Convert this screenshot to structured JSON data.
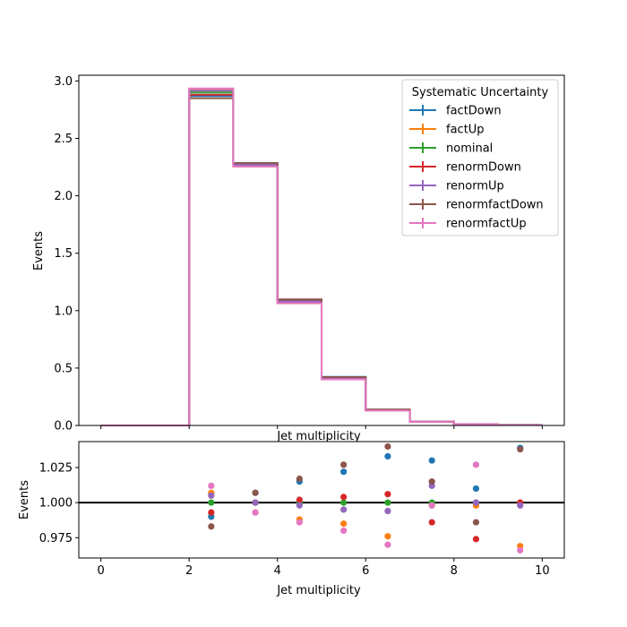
{
  "chart_data": [
    {
      "type": "line",
      "subtype": "step-histogram",
      "xlabel": "Jet multiplicity",
      "ylabel": "Events",
      "xlim": [
        -0.5,
        10.5
      ],
      "ylim": [
        0,
        3.05
      ],
      "xticks": [
        0,
        2,
        4,
        6,
        8,
        10
      ],
      "xtick_labels": [
        "",
        "",
        "",
        "",
        "",
        ""
      ],
      "yticks": [
        0.0,
        0.5,
        1.0,
        1.5,
        2.0,
        2.5,
        3.0
      ],
      "ytick_labels": [
        "0.0",
        "0.5",
        "1.0",
        "1.5",
        "2.0",
        "2.5",
        "3.0"
      ],
      "grid": false,
      "bin_edges": [
        0,
        1,
        2,
        3,
        4,
        5,
        6,
        7,
        8,
        9,
        10
      ],
      "legend": {
        "title": "Systematic Uncertainty",
        "placement": "top-right"
      },
      "series": [
        {
          "name": "factDown",
          "color": "#1f77b4",
          "values": [
            0,
            0,
            2.87,
            2.285,
            1.096,
            0.423,
            0.137,
            0.034,
            0.0098,
            0.0045
          ]
        },
        {
          "name": "factUp",
          "color": "#ff7f0e",
          "values": [
            0,
            0,
            2.92,
            2.255,
            1.064,
            0.405,
            0.131,
            0.033,
            0.0094,
            0.0042
          ]
        },
        {
          "name": "nominal",
          "color": "#2ca02c",
          "values": [
            0,
            0,
            2.9,
            2.27,
            1.08,
            0.41,
            0.134,
            0.034,
            0.0096,
            0.0043
          ]
        },
        {
          "name": "renormDown",
          "color": "#d62728",
          "values": [
            0,
            0,
            2.88,
            2.27,
            1.082,
            0.412,
            0.135,
            0.033,
            0.0094,
            0.0043
          ]
        },
        {
          "name": "renormUp",
          "color": "#9467bd",
          "values": [
            0,
            0,
            2.915,
            2.27,
            1.079,
            0.408,
            0.133,
            0.034,
            0.0096,
            0.0043
          ]
        },
        {
          "name": "renormfactDown",
          "color": "#8c564b",
          "values": [
            0,
            0,
            2.85,
            2.285,
            1.098,
            0.421,
            0.139,
            0.0345,
            0.0095,
            0.0045
          ]
        },
        {
          "name": "renormfactUp",
          "color": "#e377c2",
          "values": [
            0,
            0,
            2.935,
            2.255,
            1.065,
            0.402,
            0.13,
            0.0335,
            0.0099,
            0.0042
          ]
        }
      ]
    },
    {
      "type": "scatter",
      "xlabel": "Jet multiplicity",
      "ylabel": "Events",
      "xlim": [
        -0.5,
        10.5
      ],
      "ylim": [
        0.9605,
        1.0435
      ],
      "xticks": [
        0,
        2,
        4,
        6,
        8,
        10
      ],
      "xtick_labels": [
        "0",
        "2",
        "4",
        "6",
        "8",
        "10"
      ],
      "yticks": [
        0.975,
        1.0,
        1.025
      ],
      "ytick_labels": [
        "0.975",
        "1.000",
        "1.025"
      ],
      "grid": false,
      "reference_line": 1.0,
      "x": [
        2.5,
        3.5,
        4.5,
        5.5,
        6.5,
        7.5,
        8.5,
        9.5
      ],
      "series": [
        {
          "name": "factDown",
          "color": "#1f77b4",
          "values": [
            0.99,
            1.007,
            1.015,
            1.022,
            1.033,
            1.03,
            1.01,
            1.039
          ]
        },
        {
          "name": "factUp",
          "color": "#ff7f0e",
          "values": [
            1.007,
            0.993,
            0.988,
            0.985,
            0.976,
            0.998,
            0.998,
            0.969
          ]
        },
        {
          "name": "nominal",
          "color": "#2ca02c",
          "values": [
            1.0,
            1.0,
            1.0,
            1.0,
            1.0,
            1.0,
            1.0,
            1.0
          ]
        },
        {
          "name": "renormDown",
          "color": "#d62728",
          "values": [
            0.993,
            1.0,
            1.002,
            1.004,
            1.006,
            0.986,
            0.974,
            1.0
          ]
        },
        {
          "name": "renormUp",
          "color": "#9467bd",
          "values": [
            1.005,
            1.0,
            0.998,
            0.995,
            0.994,
            1.012,
            1.0,
            0.998
          ]
        },
        {
          "name": "renormfactDown",
          "color": "#8c564b",
          "values": [
            0.983,
            1.007,
            1.017,
            1.027,
            1.04,
            1.015,
            0.986,
            1.038
          ]
        },
        {
          "name": "renormfactUp",
          "color": "#e377c2",
          "values": [
            1.012,
            0.993,
            0.986,
            0.98,
            0.97,
            0.998,
            1.027,
            0.966
          ]
        }
      ]
    }
  ]
}
